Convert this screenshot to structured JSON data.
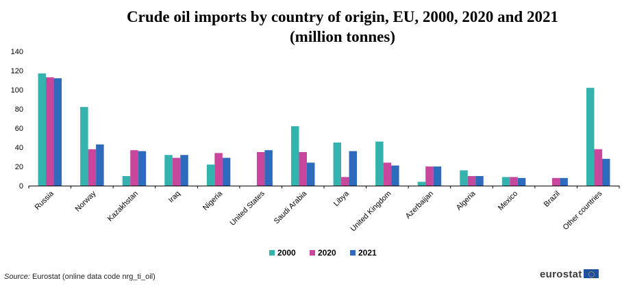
{
  "chart_data": {
    "type": "bar",
    "title": "Crude oil imports by country of origin, EU, 2000, 2020 and 2021",
    "subtitle": "(million tonnes)",
    "categories": [
      "Russia",
      "Norway",
      "Kazakhstan",
      "Iraq",
      "Nigeria",
      "United States",
      "Saudi Arabia",
      "Libya",
      "United Kingdom",
      "Azerbaijan",
      "Algeria",
      "Mexico",
      "Brazil",
      "Other countries"
    ],
    "series": [
      {
        "name": "2000",
        "color": "#34b3ae",
        "values": [
          117,
          82,
          10,
          32,
          22,
          0,
          62,
          45,
          46,
          4,
          16,
          9,
          0,
          102
        ]
      },
      {
        "name": "2020",
        "color": "#c8479c",
        "values": [
          113,
          38,
          37,
          29,
          34,
          35,
          35,
          9,
          24,
          20,
          10,
          9,
          8,
          38
        ]
      },
      {
        "name": "2021",
        "color": "#2f6bbd",
        "values": [
          112,
          43,
          36,
          32,
          29,
          37,
          24,
          36,
          21,
          20,
          10,
          8,
          8,
          28
        ]
      }
    ],
    "ylim": [
      0,
      140
    ],
    "yticks": [
      0,
      20,
      40,
      60,
      80,
      100,
      120,
      140
    ],
    "grid": false,
    "legend": "bottom-center"
  },
  "footer": {
    "source_label": "Source:",
    "source_text": "Eurostat (online data code nrg_ti_oil)",
    "logo_text": "eurostat"
  }
}
